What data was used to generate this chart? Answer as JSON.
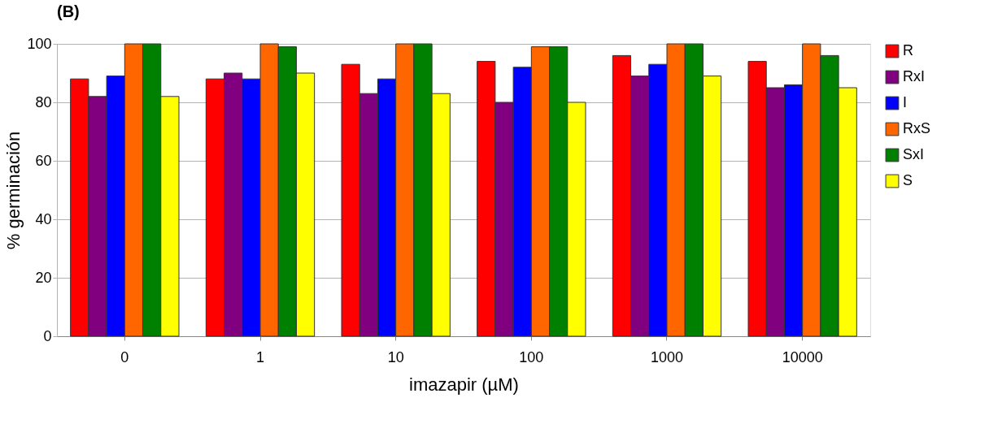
{
  "chart_data": {
    "type": "bar",
    "title": "(B)",
    "xlabel": "imazapir (µM)",
    "ylabel": "% germinación",
    "categories": [
      "0",
      "1",
      "10",
      "100",
      "1000",
      "10000"
    ],
    "series": [
      {
        "name": "R",
        "color": "#ff0000",
        "values": [
          88,
          88,
          93,
          94,
          96,
          94
        ]
      },
      {
        "name": "RxI",
        "color": "#800080",
        "values": [
          82,
          90,
          83,
          80,
          89,
          85
        ]
      },
      {
        "name": "I",
        "color": "#0000ff",
        "values": [
          89,
          88,
          88,
          92,
          93,
          86
        ]
      },
      {
        "name": "RxS",
        "color": "#ff6600",
        "values": [
          100,
          100,
          100,
          99,
          100,
          100
        ]
      },
      {
        "name": "SxI",
        "color": "#008000",
        "values": [
          100,
          99,
          100,
          99,
          100,
          96
        ]
      },
      {
        "name": "S",
        "color": "#ffff00",
        "values": [
          82,
          90,
          83,
          80,
          89,
          85
        ]
      }
    ],
    "ylim": [
      0,
      100
    ],
    "yticks": [
      0,
      20,
      40,
      60,
      80,
      100
    ],
    "grid": "y",
    "legend": "right"
  }
}
